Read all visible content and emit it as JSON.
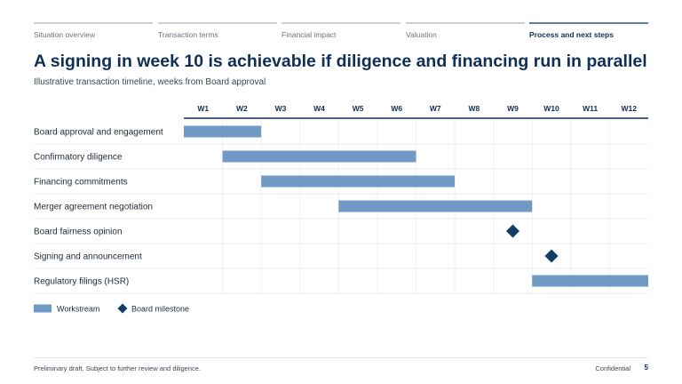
{
  "tabs": [
    {
      "label": "Situation overview",
      "active": false
    },
    {
      "label": "Transaction terms",
      "active": false
    },
    {
      "label": "Financial impact",
      "active": false
    },
    {
      "label": "Valuation",
      "active": false
    },
    {
      "label": "Process and next steps",
      "active": true
    }
  ],
  "title": "A signing in week 10 is achievable if diligence and financing run in parallel",
  "subtitle": "Illustrative transaction timeline, weeks from Board approval",
  "colors": {
    "bar": "#7199c6",
    "milestone": "#123d66",
    "axis": "#0f2f57",
    "accent": "#5a7fa8"
  },
  "chart_data": {
    "type": "gantt",
    "weeks": [
      "W1",
      "W2",
      "W3",
      "W4",
      "W5",
      "W6",
      "W7",
      "W8",
      "W9",
      "W10",
      "W11",
      "W12"
    ],
    "rows": [
      {
        "label": "Board approval and engagement",
        "kind": "bar",
        "start_week": 1,
        "end_week": 2
      },
      {
        "label": "Confirmatory diligence",
        "kind": "bar",
        "start_week": 2,
        "end_week": 6
      },
      {
        "label": "Financing commitments",
        "kind": "bar",
        "start_week": 3,
        "end_week": 7
      },
      {
        "label": "Merger agreement negotiation",
        "kind": "bar",
        "start_week": 5,
        "end_week": 9
      },
      {
        "label": "Board fairness opinion",
        "kind": "milestone",
        "week": 9
      },
      {
        "label": "Signing and announcement",
        "kind": "milestone",
        "week": 10
      },
      {
        "label": "Regulatory filings (HSR)",
        "kind": "bar",
        "start_week": 10,
        "end_week": 12
      }
    ],
    "legend": [
      {
        "kind": "bar",
        "label": "Workstream"
      },
      {
        "kind": "milestone",
        "label": "Board milestone"
      }
    ]
  },
  "footer": {
    "note": "Preliminary draft. Subject to further review and diligence.",
    "classification": "Confidential",
    "page": "5"
  }
}
